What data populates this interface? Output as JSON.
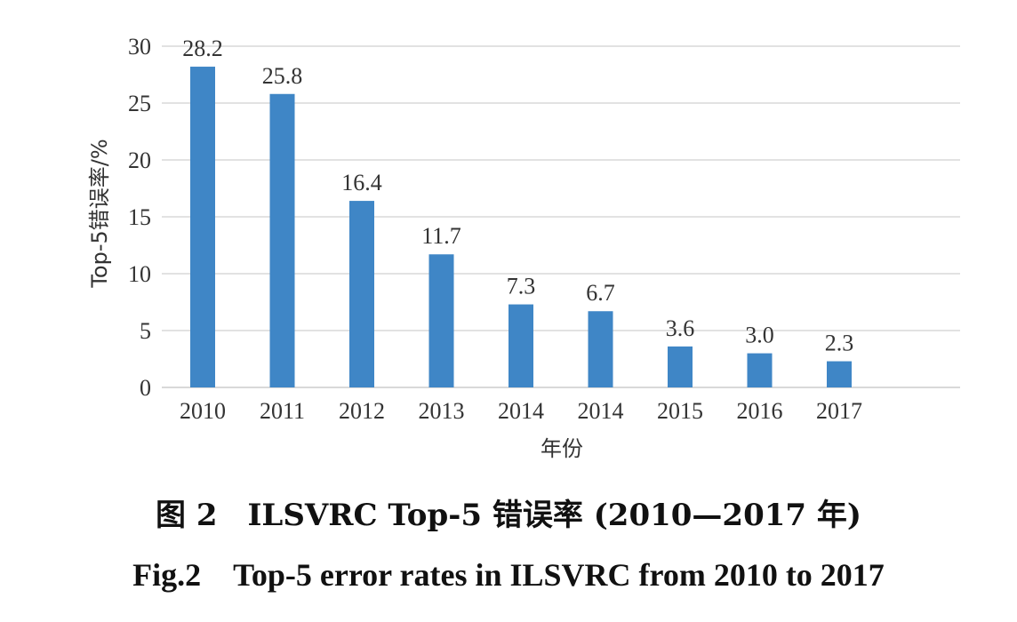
{
  "chart_data": {
    "type": "bar",
    "categories": [
      "2010",
      "2011",
      "2012",
      "2013",
      "2014",
      "2014",
      "2015",
      "2016",
      "2017"
    ],
    "values": [
      28.2,
      25.8,
      16.4,
      11.7,
      7.3,
      6.7,
      3.6,
      3.0,
      2.3
    ],
    "data_labels": [
      "28.2",
      "25.8",
      "16.4",
      "11.7",
      "7.3",
      "6.7",
      "3.6",
      "3.0",
      "2.3"
    ],
    "xlabel": "年份",
    "ylabel": "Top-5错误率/%",
    "ylim": [
      0,
      30
    ],
    "yticks": [
      "0",
      "5",
      "10",
      "15",
      "20",
      "25",
      "30"
    ],
    "grid": true,
    "legend": "none",
    "bar_color": "#3f86c6",
    "grid_color": "#d9d9d9"
  },
  "caption": {
    "chinese": "图 2　ILSVRC Top-5 错误率 (2010—2017 年)",
    "english": "Fig.2　Top-5 error rates in ILSVRC from 2010 to 2017"
  }
}
